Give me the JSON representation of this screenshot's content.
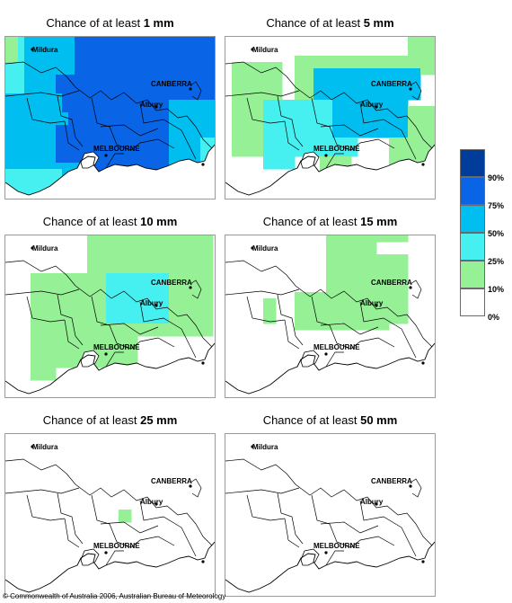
{
  "panels": [
    {
      "id": "p1",
      "title_prefix": "Chance of at least ",
      "threshold": "1 mm",
      "rainfall_mm": 1,
      "labels": {
        "mildura": "Mildura",
        "canberra": "CANBERRA",
        "albury": "Albury",
        "melbourne": "MELBOURNE"
      }
    },
    {
      "id": "p5",
      "title_prefix": "Chance of at least ",
      "threshold": "5 mm",
      "rainfall_mm": 5,
      "labels": {
        "mildura": "Mildura",
        "canberra": "CANBERRA",
        "albury": "Albury",
        "melbourne": "MELBOURNE"
      }
    },
    {
      "id": "p10",
      "title_prefix": "Chance of at least ",
      "threshold": "10 mm",
      "rainfall_mm": 10,
      "labels": {
        "mildura": "Mildura",
        "canberra": "CANBERRA",
        "albury": "Albury",
        "melbourne": "MELBOURNE"
      }
    },
    {
      "id": "p15",
      "title_prefix": "Chance of at least ",
      "threshold": "15 mm",
      "rainfall_mm": 15,
      "labels": {
        "mildura": "Mildura",
        "canberra": "CANBERRA",
        "albury": "Albury",
        "melbourne": "MELBOURNE"
      }
    },
    {
      "id": "p25",
      "title_prefix": "Chance of at least ",
      "threshold": "25 mm",
      "rainfall_mm": 25,
      "labels": {
        "mildura": "Mildura",
        "canberra": "CANBERRA",
        "albury": "Albury",
        "melbourne": "MELBOURNE"
      }
    },
    {
      "id": "p50",
      "title_prefix": "Chance of at least ",
      "threshold": "50 mm",
      "rainfall_mm": 50,
      "labels": {
        "mildura": "Mildura",
        "canberra": "CANBERRA",
        "albury": "Albury",
        "melbourne": "MELBOURNE"
      }
    }
  ],
  "legend": {
    "bands": [
      {
        "range": "90-100%",
        "color": "#003c9a"
      },
      {
        "range": "75-90%",
        "color": "#0a64e6"
      },
      {
        "range": "50-75%",
        "color": "#00bef0"
      },
      {
        "range": "25-50%",
        "color": "#46f0f0"
      },
      {
        "range": "10-25%",
        "color": "#96f096"
      },
      {
        "range": "0-10%",
        "color": "#ffffff"
      }
    ],
    "tick_labels": [
      "90%",
      "75%",
      "50%",
      "25%",
      "10%",
      "0%"
    ]
  },
  "colors": {
    "border": "#000000",
    "map_frame": "#9a9a9a",
    "legend_outline": "#6a6a6a"
  },
  "footer": "© Commonwealth of Australia 2006, Australian Bureau of Meteorology"
}
